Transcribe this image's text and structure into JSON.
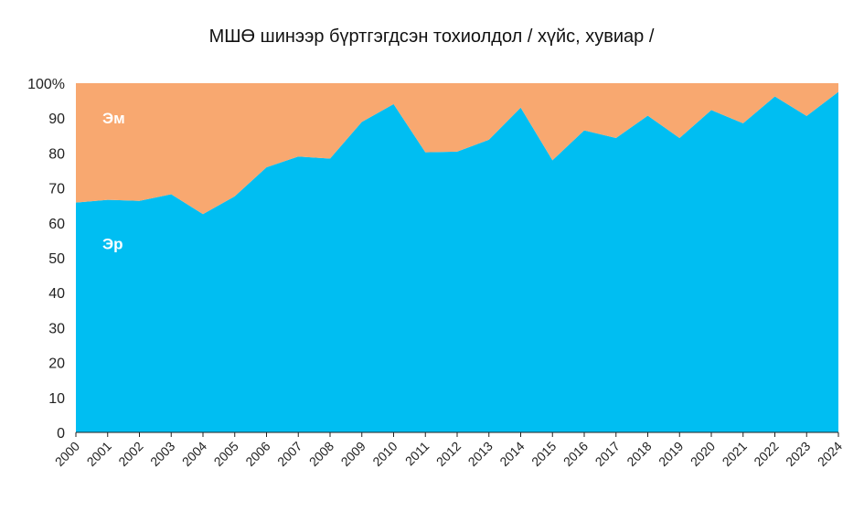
{
  "chart_data": {
    "type": "area",
    "stacked": true,
    "percent": true,
    "title": "МШӨ шинээр бүртгэгдсэн тохиолдол / хүйс, хувиар /",
    "xlabel": "",
    "ylabel": "",
    "ylim": [
      0,
      100
    ],
    "yticks": [
      "0",
      "10",
      "20",
      "30",
      "40",
      "50",
      "60",
      "70",
      "80",
      "90",
      "100%"
    ],
    "categories": [
      "2000",
      "2001",
      "2002",
      "2003",
      "2004",
      "2005",
      "2006",
      "2007",
      "2008",
      "2009",
      "2010",
      "2011",
      "2012",
      "2013",
      "2014",
      "2015",
      "2016",
      "2017",
      "2018",
      "2019",
      "2020",
      "2021",
      "2022",
      "2023",
      "2024"
    ],
    "series": [
      {
        "name": "Эр",
        "color": "#00BEF2",
        "values": [
          65.8,
          66.6,
          66.3,
          68.2,
          62.5,
          67.6,
          75.9,
          79.0,
          78.4,
          88.9,
          94.0,
          80.2,
          80.4,
          83.8,
          93.0,
          77.9,
          86.5,
          84.3,
          90.7,
          84.3,
          92.3,
          88.5,
          96.2,
          90.6,
          97.5
        ]
      },
      {
        "name": "Эм",
        "color": "#F8A870",
        "values": [
          34.2,
          33.4,
          33.7,
          31.8,
          37.5,
          32.4,
          24.1,
          21.0,
          21.6,
          11.1,
          6.0,
          19.8,
          19.6,
          16.2,
          7.0,
          22.1,
          13.5,
          15.7,
          9.3,
          15.7,
          7.7,
          11.5,
          3.8,
          9.4,
          2.5
        ]
      }
    ],
    "legend": "inline"
  }
}
